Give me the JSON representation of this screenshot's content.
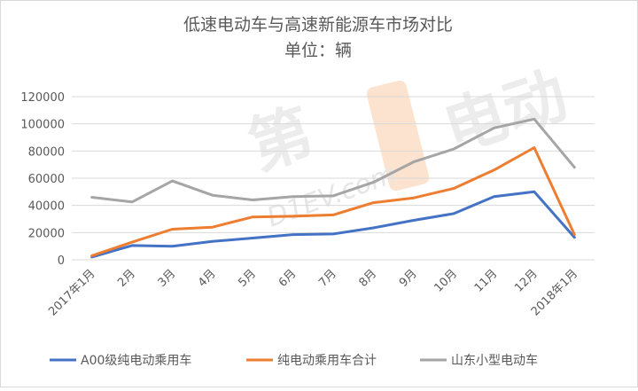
{
  "chart_data": {
    "type": "line",
    "title": "低速电动车与高速新能源车市场对比",
    "subtitle": "单位：辆",
    "xlabel": "",
    "ylabel": "",
    "categories": [
      "2017年1月",
      "2月",
      "3月",
      "4月",
      "5月",
      "6月",
      "7月",
      "8月",
      "9月",
      "10月",
      "11月",
      "12月",
      "2018年1月"
    ],
    "ylim": [
      0,
      120000
    ],
    "yticks": [
      0,
      20000,
      40000,
      60000,
      80000,
      100000,
      120000
    ],
    "ytick_labels": [
      "0",
      "20000",
      "40000",
      "60000",
      "80000",
      "100000",
      "120000"
    ],
    "grid": true,
    "legend_position": "bottom",
    "series": [
      {
        "name": "A00级纯电动乘用车",
        "color": "#4472c4",
        "values": [
          2000,
          10500,
          10000,
          13500,
          16000,
          18500,
          19000,
          23500,
          29000,
          34000,
          46500,
          50000,
          16500
        ]
      },
      {
        "name": "纯电动乘用车合计",
        "color": "#ed7d31",
        "values": [
          3000,
          13000,
          22500,
          24000,
          31500,
          32000,
          33000,
          42000,
          45500,
          52500,
          66000,
          82500,
          18500
        ]
      },
      {
        "name": "山东小型电动车",
        "color": "#a5a5a5",
        "values": [
          46000,
          42500,
          58000,
          47500,
          44000,
          46500,
          47000,
          57000,
          72000,
          81500,
          97000,
          103500,
          68000
        ]
      }
    ]
  },
  "watermark": {
    "text": "D1EV.com",
    "color": "#e8e8e8"
  }
}
